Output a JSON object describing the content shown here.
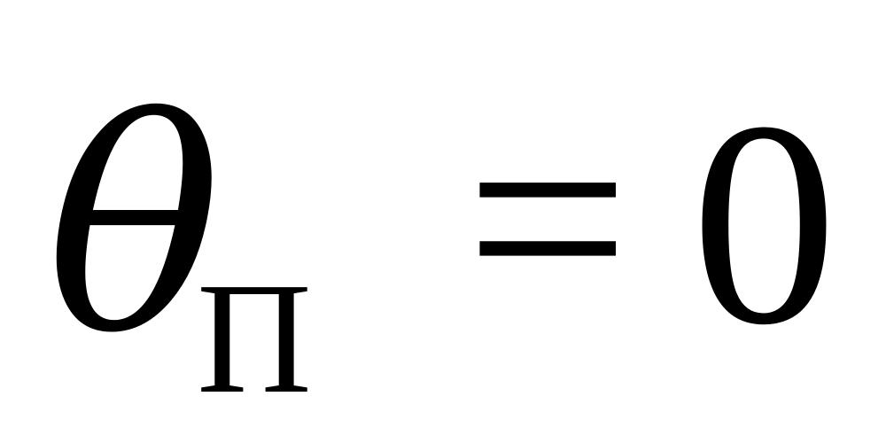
{
  "formula": {
    "symbol": "θ",
    "subscript": "П",
    "operator": "=",
    "value": "0"
  }
}
